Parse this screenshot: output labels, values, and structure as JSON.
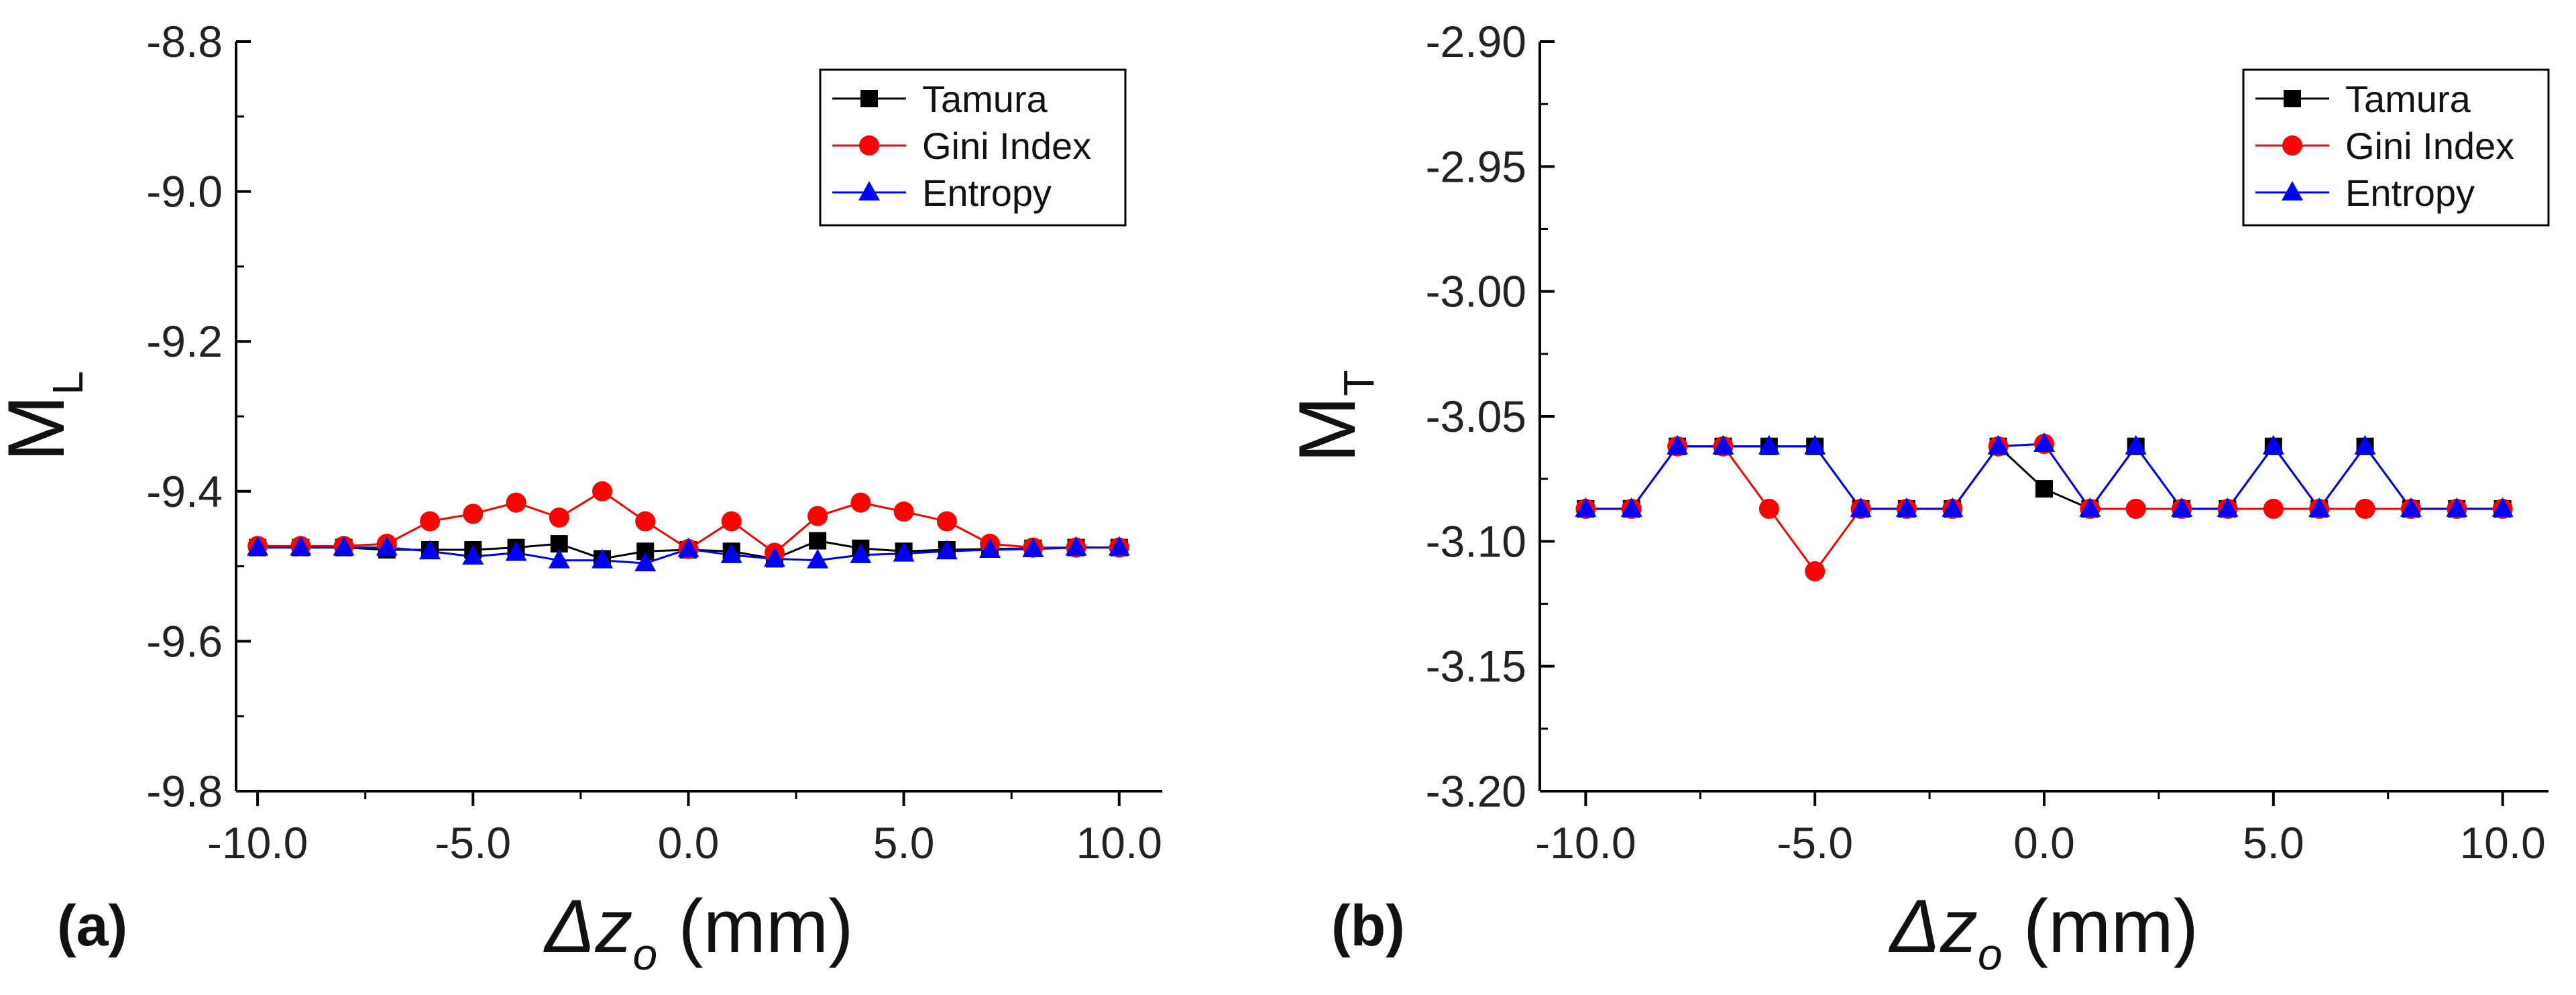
{
  "colors": {
    "Tamura": "#000000",
    "Gini Index": "#ff0000",
    "Entropy": "#0000ff"
  },
  "chart_data": [
    {
      "type": "line",
      "panel_label": "(a)",
      "ylabel_main": "M",
      "ylabel_sub": "L",
      "xlabel_main": "Δz",
      "xlabel_sub": "o",
      "xlabel_unit": " (mm)",
      "xlim": [
        -10.5,
        11
      ],
      "ylim": [
        -9.8,
        -8.8
      ],
      "xticks": [
        -10,
        -5,
        0,
        5,
        10
      ],
      "xtick_labels": [
        "-10.0",
        "-5.0",
        "0.0",
        "5.0",
        "10.0"
      ],
      "yticks": [
        -8.8,
        -9.0,
        -9.2,
        -9.4,
        -9.6,
        -9.8
      ],
      "ytick_labels": [
        "-8.8",
        "-9.0",
        "-9.2",
        "-9.4",
        "-9.6",
        "-9.8"
      ],
      "legend_position": "top-right",
      "x": [
        -10,
        -9,
        -8,
        -7,
        -6,
        -5,
        -4,
        -3,
        -2,
        -1,
        0,
        1,
        2,
        3,
        4,
        5,
        6,
        7,
        8,
        9,
        10
      ],
      "series": [
        {
          "name": "Tamura",
          "marker": "square",
          "values": [
            -9.475,
            -9.475,
            -9.475,
            -9.478,
            -9.478,
            -9.478,
            -9.475,
            -9.47,
            -9.49,
            -9.48,
            -9.478,
            -9.48,
            -9.49,
            -9.466,
            -9.476,
            -9.48,
            -9.478,
            -9.477,
            -9.476,
            -9.475,
            -9.475
          ]
        },
        {
          "name": "Gini Index",
          "marker": "circle",
          "values": [
            -9.473,
            -9.473,
            -9.473,
            -9.47,
            -9.44,
            -9.43,
            -9.415,
            -9.435,
            -9.4,
            -9.44,
            -9.477,
            -9.44,
            -9.482,
            -9.433,
            -9.415,
            -9.427,
            -9.44,
            -9.47,
            -9.475,
            -9.475,
            -9.475
          ]
        },
        {
          "name": "Entropy",
          "marker": "triangle",
          "values": [
            -9.475,
            -9.475,
            -9.475,
            -9.475,
            -9.48,
            -9.487,
            -9.482,
            -9.492,
            -9.492,
            -9.496,
            -9.477,
            -9.485,
            -9.49,
            -9.492,
            -9.485,
            -9.483,
            -9.48,
            -9.478,
            -9.477,
            -9.475,
            -9.475
          ]
        }
      ]
    },
    {
      "type": "line",
      "panel_label": "(b)",
      "ylabel_main": "M",
      "ylabel_sub": "T",
      "xlabel_main": "Δz",
      "xlabel_sub": "o",
      "xlabel_unit": " (mm)",
      "xlim": [
        -11,
        11
      ],
      "ylim": [
        -3.2,
        -2.9
      ],
      "xticks": [
        -10,
        -5,
        0,
        5,
        10
      ],
      "xtick_labels": [
        "-10.0",
        "-5.0",
        "0.0",
        "5.0",
        "10.0"
      ],
      "yticks": [
        -2.9,
        -2.95,
        -3.0,
        -3.05,
        -3.1,
        -3.15,
        -3.2
      ],
      "ytick_labels": [
        "-2.90",
        "-2.95",
        "-3.00",
        "-3.05",
        "-3.10",
        "-3.15",
        "-3.20"
      ],
      "legend_position": "top-right",
      "x": [
        -10,
        -9,
        -8,
        -7,
        -6,
        -5,
        -4,
        -3,
        -2,
        -1,
        0,
        1,
        2,
        3,
        4,
        5,
        6,
        7,
        8,
        9,
        10
      ],
      "series": [
        {
          "name": "Tamura",
          "marker": "square",
          "values": [
            -3.087,
            -3.087,
            -3.062,
            -3.062,
            -3.062,
            -3.062,
            -3.087,
            -3.087,
            -3.087,
            -3.062,
            -3.079,
            -3.087,
            -3.062,
            -3.087,
            -3.087,
            -3.062,
            -3.087,
            -3.062,
            -3.087,
            -3.087,
            -3.087
          ]
        },
        {
          "name": "Gini Index",
          "marker": "circle",
          "values": [
            -3.087,
            -3.087,
            -3.062,
            -3.062,
            -3.087,
            -3.112,
            -3.087,
            -3.087,
            -3.087,
            -3.062,
            -3.061,
            -3.087,
            -3.087,
            -3.087,
            -3.087,
            -3.087,
            -3.087,
            -3.087,
            -3.087,
            -3.087,
            -3.087
          ]
        },
        {
          "name": "Entropy",
          "marker": "triangle",
          "values": [
            -3.087,
            -3.087,
            -3.062,
            -3.062,
            -3.062,
            -3.062,
            -3.087,
            -3.087,
            -3.087,
            -3.062,
            -3.061,
            -3.087,
            -3.062,
            -3.087,
            -3.087,
            -3.062,
            -3.087,
            -3.062,
            -3.087,
            -3.087,
            -3.087
          ]
        }
      ]
    }
  ]
}
